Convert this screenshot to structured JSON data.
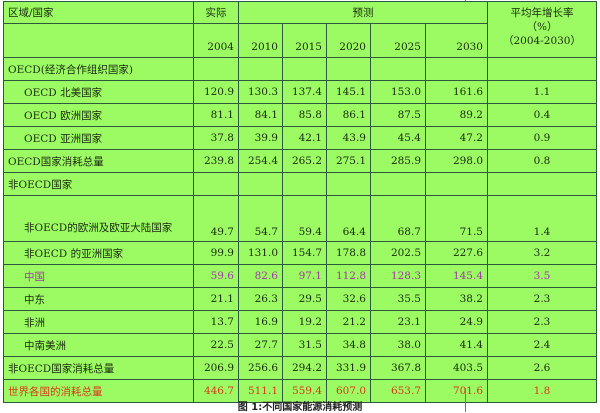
{
  "header": {
    "region": "区域/国家",
    "actual": "实际",
    "forecast": "预测",
    "growth": "平均年增长率",
    "growth_unit": "（%）",
    "growth_range": "（2004-2030）",
    "years": [
      "2004",
      "2010",
      "2015",
      "2020",
      "2025",
      "2030"
    ]
  },
  "rows": [
    {
      "label": "OECD(经济合作组织国家)",
      "values": []
    },
    {
      "label": "OECD 北美国家",
      "values": [
        "120.9",
        "130.3",
        "137.4",
        "145.1",
        "153.0",
        "161.6",
        "1.1"
      ]
    },
    {
      "label": "OECD 欧洲国家",
      "values": [
        "81.1",
        "84.1",
        "85.8",
        "86.1",
        "87.5",
        "89.2",
        "0.4"
      ]
    },
    {
      "label": "OECD 亚洲国家",
      "values": [
        "37.8",
        "39.9",
        "42.1",
        "43.9",
        "45.4",
        "47.2",
        "0.9"
      ]
    },
    {
      "label": "OECD国家消耗总量",
      "values": [
        "239.8",
        "254.4",
        "265.2",
        "275.1",
        "285.9",
        "298.0",
        "0.8"
      ]
    },
    {
      "label": "非OECD国家",
      "values": []
    },
    {
      "label": "非OECD的欧洲及欧亚大陆国家",
      "values": [
        "49.7",
        "54.7",
        "59.4",
        "64.4",
        "68.7",
        "71.5",
        "1.4"
      ]
    },
    {
      "label": "非OECD 的亚洲国家",
      "values": [
        "99.9",
        "131.0",
        "154.7",
        "178.8",
        "202.5",
        "227.6",
        "3.2"
      ]
    },
    {
      "label": "中国",
      "values": [
        "59.6",
        "82.6",
        "97.1",
        "112.8",
        "128.3",
        "145.4",
        "3.5"
      ]
    },
    {
      "label": "中东",
      "values": [
        "21.1",
        "26.3",
        "29.5",
        "32.6",
        "35.5",
        "38.2",
        "2.3"
      ]
    },
    {
      "label": "非洲",
      "values": [
        "13.7",
        "16.9",
        "19.2",
        "21.2",
        "23.1",
        "24.9",
        "2.3"
      ]
    },
    {
      "label": "中南美洲",
      "values": [
        "22.5",
        "27.7",
        "31.5",
        "34.8",
        "38.0",
        "41.4",
        "2.4"
      ]
    },
    {
      "label": "非OECD国家消耗总量",
      "values": [
        "206.9",
        "256.6",
        "294.2",
        "331.9",
        "367.8",
        "403.5",
        "2.6"
      ]
    },
    {
      "label": "世界各国的消耗总量",
      "values": [
        "446.7",
        "511.1",
        "559.4",
        "607.0",
        "653.7",
        "701.6",
        "1.8"
      ]
    }
  ],
  "colors": {
    "table_bg": "#9cfb62",
    "china": "#a03aa8",
    "world": "#d83a1a"
  },
  "caption": "图 1:不同国家能源消耗预测"
}
